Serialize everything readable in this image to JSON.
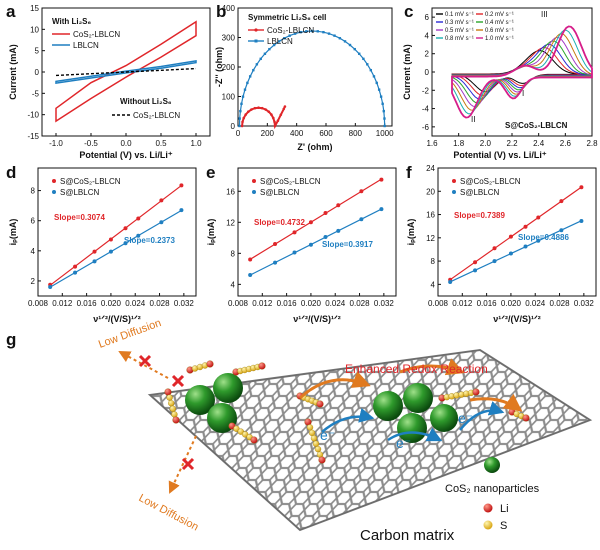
{
  "panels": {
    "a": {
      "letter": "a",
      "ylabel": "Current (mA)",
      "xlabel": "Potential (V) vs. Li/Li⁺",
      "legend_title": "With Li₂S₆",
      "series_names": [
        "CoS₂-LBLCN",
        "LBLCN"
      ],
      "legend2_title": "Without Li₂S₆",
      "legend2_series": "CoS₂-LBLCN",
      "xticks": [
        "-1.0",
        "-0.5",
        "0.0",
        "0.5",
        "1.0"
      ],
      "yticks": [
        "15",
        "10",
        "5",
        "0",
        "-5",
        "-10",
        "-15"
      ]
    },
    "b": {
      "letter": "b",
      "ylabel": "-Z'' (ohm)",
      "xlabel": "Z' (ohm)",
      "legend_title": "Symmetric Li₂S₆ cell",
      "series_names": [
        "CoS₂-LBLCN",
        "LBLCN"
      ],
      "xticks": [
        "0",
        "200",
        "400",
        "600",
        "800",
        "1000"
      ],
      "yticks": [
        "0",
        "100",
        "200",
        "300",
        "400"
      ]
    },
    "c": {
      "letter": "c",
      "ylabel": "Current (mA)",
      "xlabel": "Potential (V) vs. Li/Li⁺",
      "sample": "S@CoS₂-LBLCN",
      "peak_labels": [
        "I",
        "II",
        "III"
      ],
      "rates": [
        "0.1 mV s⁻¹",
        "0.2 mV s⁻¹",
        "0.3 mV s⁻¹",
        "0.4 mV s⁻¹",
        "0.5 mV s⁻¹",
        "0.6 mV s⁻¹",
        "0.8 mV s⁻¹",
        "1.0 mV s⁻¹"
      ],
      "xticks": [
        "1.6",
        "1.8",
        "2.0",
        "2.2",
        "2.4",
        "2.6",
        "2.8"
      ],
      "yticks": [
        "6",
        "4",
        "2",
        "0",
        "-2",
        "-4",
        "-6"
      ]
    },
    "d": {
      "letter": "d",
      "ylabel": "iₚ(mA)",
      "xlabel": "ν¹ᐟ²/(V/S)¹ᐟ²",
      "series_names": [
        "S@CoS₂-LBLCN",
        "S@LBLCN"
      ],
      "slopes": [
        "Slope=0.3074",
        "Slope=0.2373"
      ],
      "xticks": [
        "0.008",
        "0.012",
        "0.016",
        "0.020",
        "0.024",
        "0.028",
        "0.032"
      ],
      "yticks": [
        "2",
        "4",
        "6",
        "8"
      ]
    },
    "e": {
      "letter": "e",
      "ylabel": "iₚ(mA)",
      "xlabel": "ν¹ᐟ²/(V/S)¹ᐟ²",
      "series_names": [
        "S@CoS₂-LBLCN",
        "S@LBLCN"
      ],
      "slopes": [
        "Slope=0.4732",
        "Slope=0.3917"
      ],
      "xticks": [
        "0.008",
        "0.012",
        "0.016",
        "0.020",
        "0.024",
        "0.028",
        "0.032"
      ],
      "yticks": [
        "4",
        "8",
        "12",
        "16"
      ]
    },
    "f": {
      "letter": "f",
      "ylabel": "iₚ(mA)",
      "xlabel": "ν¹ᐟ²/(V/S)¹ᐟ²",
      "series_names": [
        "S@CoS₂-LBLCN",
        "S@LBLCN"
      ],
      "slopes": [
        "Slope=0.7389",
        "Slope=0.4886"
      ],
      "xticks": [
        "0.008",
        "0.012",
        "0.016",
        "0.020",
        "0.024",
        "0.028",
        "0.032"
      ],
      "yticks": [
        "4",
        "8",
        "12",
        "16",
        "20",
        "24"
      ]
    },
    "g": {
      "letter": "g",
      "low_diffusion": "Low Diffusion",
      "redox": "Enhanced Redox Reaction",
      "electron": "e⁻",
      "legend": [
        "CoS₂ nanoparticles",
        "Li",
        "S"
      ],
      "matrix": "Carbon matrix"
    }
  },
  "colors": {
    "red": "#e0262a",
    "blue": "#1f7fc1",
    "black": "#000000",
    "orange": "#e07a20"
  },
  "chart_data": [
    {
      "type": "line",
      "panel": "a",
      "xlim": [
        -1.2,
        1.2
      ],
      "ylim": [
        -15,
        15
      ],
      "series": [
        {
          "name": "CoS₂-LBLCN",
          "x": [
            -1.0,
            -0.5,
            0.0,
            0.5,
            1.0
          ],
          "y_upper": [
            -8.5,
            -2.5,
            1.5,
            6.5,
            11.8
          ],
          "y_lower": [
            -11.5,
            -6.2,
            -1.2,
            3.5,
            8.5
          ]
        },
        {
          "name": "LBLCN",
          "x": [
            -1.0,
            -0.5,
            0.0,
            0.5,
            1.0
          ],
          "y_upper": [
            -2.2,
            -1.0,
            0.2,
            1.3,
            2.6
          ],
          "y_lower": [
            -2.6,
            -1.4,
            -0.2,
            0.9,
            2.2
          ]
        },
        {
          "name": "CoS₂-LBLCN",
          "x": [
            -1.0,
            1.0
          ],
          "y": [
            -0.8,
            0.8
          ]
        }
      ]
    },
    {
      "type": "line",
      "panel": "b",
      "xlim": [
        0,
        1050
      ],
      "ylim": [
        0,
        400
      ],
      "series": [
        {
          "name": "CoS₂-LBLCN",
          "x": [
            30,
            80,
            150,
            220,
            255,
            290,
            320
          ],
          "y": [
            0,
            40,
            65,
            40,
            0,
            30,
            60
          ]
        },
        {
          "name": "LBLCN",
          "x": [
            10,
            50,
            150,
            300,
            500,
            700,
            850,
            950,
            1000
          ],
          "y": [
            0,
            100,
            200,
            285,
            320,
            285,
            200,
            100,
            0
          ]
        }
      ]
    },
    {
      "type": "line",
      "panel": "c",
      "xlim": [
        1.6,
        2.8
      ],
      "ylim": [
        -7,
        7
      ],
      "series_count": 8,
      "rates_mV_s": [
        0.1,
        0.2,
        0.3,
        0.4,
        0.5,
        0.6,
        0.8,
        1.0
      ]
    },
    {
      "type": "scatter",
      "panel": "d",
      "x": [
        0.01,
        0.0141,
        0.0173,
        0.02,
        0.0224,
        0.0245,
        0.0283,
        0.0316
      ],
      "ylim": [
        1,
        9.5
      ],
      "series": [
        {
          "name": "S@CoS₂-LBLCN",
          "y": [
            1.75,
            2.95,
            3.95,
            4.75,
            5.5,
            6.15,
            7.35,
            8.35
          ],
          "slope": 0.3074
        },
        {
          "name": "S@LBLCN",
          "y": [
            1.6,
            2.55,
            3.3,
            3.95,
            4.5,
            5.0,
            5.9,
            6.7
          ],
          "slope": 0.2373
        }
      ]
    },
    {
      "type": "scatter",
      "panel": "e",
      "x": [
        0.01,
        0.0141,
        0.0173,
        0.02,
        0.0224,
        0.0245,
        0.0283,
        0.0316
      ],
      "ylim": [
        2.5,
        19
      ],
      "series": [
        {
          "name": "S@CoS₂-LBLCN",
          "y": [
            7.2,
            9.2,
            10.7,
            12.0,
            13.2,
            14.2,
            16.0,
            17.5
          ],
          "slope": 0.4732
        },
        {
          "name": "S@LBLCN",
          "y": [
            5.2,
            6.8,
            8.1,
            9.1,
            10.1,
            10.9,
            12.4,
            13.7
          ],
          "slope": 0.3917
        }
      ]
    },
    {
      "type": "scatter",
      "panel": "f",
      "x": [
        0.01,
        0.0141,
        0.0173,
        0.02,
        0.0224,
        0.0245,
        0.0283,
        0.0316
      ],
      "ylim": [
        2,
        24
      ],
      "series": [
        {
          "name": "S@CoS₂-LBLCN",
          "y": [
            4.8,
            7.8,
            10.2,
            12.2,
            13.9,
            15.5,
            18.3,
            20.7
          ],
          "slope": 0.7389
        },
        {
          "name": "S@LBLCN",
          "y": [
            4.4,
            6.4,
            8.0,
            9.3,
            10.5,
            11.5,
            13.3,
            14.9
          ],
          "slope": 0.4886
        }
      ]
    }
  ]
}
